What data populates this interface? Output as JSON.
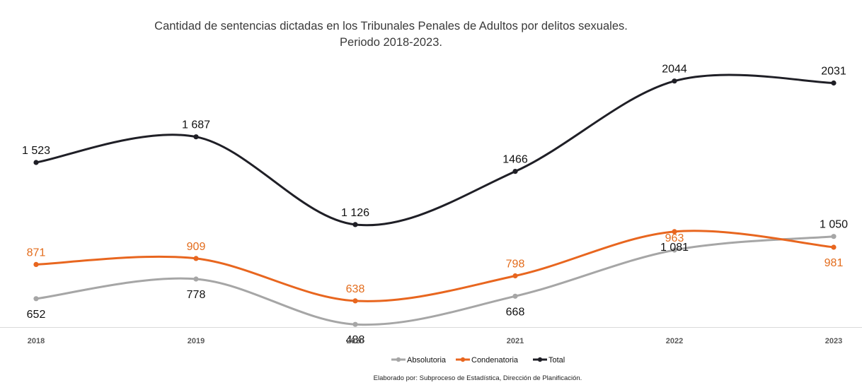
{
  "chart_data": {
    "type": "line",
    "title": "Cantidad de sentencias dictadas en los Tribunales Penales de Adultos por delitos sexuales.",
    "subtitle": "Periodo 2018-2023.",
    "categories": [
      "2018",
      "2019",
      "2020",
      "2021",
      "2022",
      "2023"
    ],
    "series": [
      {
        "name": "Absolutoria",
        "color": "#a6a6a6",
        "values": [
          652,
          778,
          488,
          668,
          963,
          1050
        ],
        "labels": [
          "652",
          "778",
          "488",
          "668",
          "963",
          "1 050"
        ],
        "label_colors": [
          "#111111",
          "#111111",
          "#111111",
          "#111111",
          "#e36c1c",
          "#111111"
        ]
      },
      {
        "name": "Condenatoria",
        "color": "#e8661f",
        "values": [
          871,
          909,
          638,
          798,
          1081,
          981
        ],
        "labels": [
          "871",
          "909",
          "638",
          "798",
          "1 081",
          "981"
        ],
        "label_colors": [
          "#e36c1c",
          "#e36c1c",
          "#e36c1c",
          "#e36c1c",
          "#111111",
          "#e36c1c"
        ]
      },
      {
        "name": "Total",
        "color": "#1f1f26",
        "values": [
          1523,
          1687,
          1126,
          1466,
          2044,
          2031
        ],
        "labels": [
          "1 523",
          "1 687",
          "1 126",
          "1466",
          "2044",
          "2031"
        ],
        "label_colors": [
          "#111111",
          "#111111",
          "#111111",
          "#111111",
          "#111111",
          "#111111"
        ]
      }
    ],
    "xlabel": "",
    "ylabel": "",
    "grid": false,
    "legend_position": "bottom",
    "source": "Elaborado por: Subproceso de Estadística, Dirección de Planificación."
  }
}
